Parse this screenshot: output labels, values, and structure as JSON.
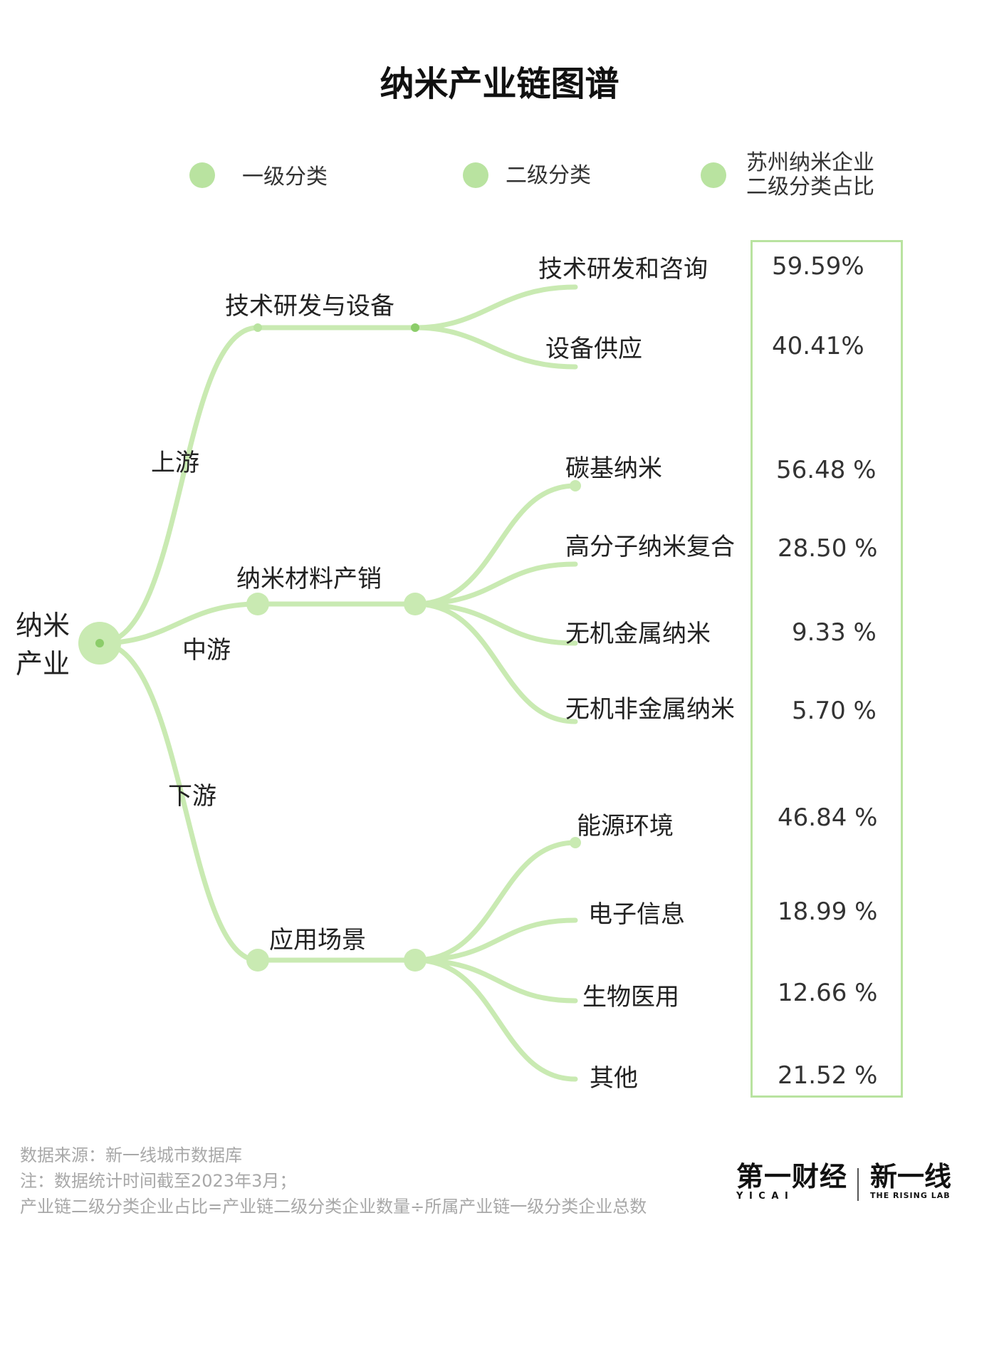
{
  "title": "纳米产业链图谱",
  "legend": {
    "items": [
      {
        "label": "一级分类"
      },
      {
        "label": "二级分类"
      },
      {
        "label_line1": "苏州纳米企业",
        "label_line2": "二级分类占比"
      }
    ]
  },
  "tree": {
    "root": {
      "line1": "纳米",
      "line2": "产业"
    },
    "tiers": [
      "上游",
      "中游",
      "下游"
    ],
    "level1": [
      {
        "name": "技术研发与设备",
        "children": [
          {
            "name": "技术研发和咨询",
            "share": "59.59%"
          },
          {
            "name": "设备供应",
            "share": "40.41%"
          }
        ]
      },
      {
        "name": "纳米材料产销",
        "children": [
          {
            "name": "碳基纳米",
            "share": "56.48 %"
          },
          {
            "name": "高分子纳米复合",
            "share": "28.50 %"
          },
          {
            "name": "无机金属纳米",
            "share": "9.33 %"
          },
          {
            "name": "无机非金属纳米",
            "share": "5.70 %"
          }
        ]
      },
      {
        "name": "应用场景",
        "children": [
          {
            "name": "能源环境",
            "share": "46.84 %"
          },
          {
            "name": "电子信息",
            "share": "18.99 %"
          },
          {
            "name": "生物医用",
            "share": "12.66 %"
          },
          {
            "name": "其他",
            "share": "21.52 %"
          }
        ]
      }
    ]
  },
  "footnotes": [
    "数据来源：新一线城市数据库",
    "注：数据统计时间截至2023年3月；",
    "产业链二级分类企业占比=产业链二级分类企业数量÷所属产业链一级分类企业总数"
  ],
  "logos": {
    "yicai": "第一财经",
    "yicai_sub": "Y I C A I",
    "rising": "新一线",
    "rising_sub": "THE RISING LAB"
  },
  "colors": {
    "branch": "#c9eab2",
    "node": "#b9e3a0",
    "node_center": "#8ccd6a"
  }
}
